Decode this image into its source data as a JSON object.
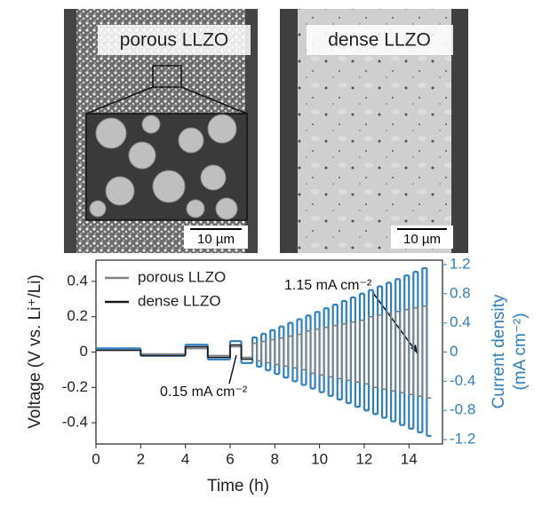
{
  "images": [
    {
      "label": "porous LLZO",
      "scale": "10 µm"
    },
    {
      "label": "dense LLZO",
      "scale": "10 µm"
    }
  ],
  "chart_data": {
    "type": "line",
    "xlabel": "Time (h)",
    "ylabel": "Voltage (V vs. Li⁺/Li)",
    "y2label": [
      "Current density",
      "(mA cm⁻²)"
    ],
    "annotations": [
      "1.15 mA cm⁻²",
      "0.15 mA cm⁻²"
    ],
    "xlim": [
      0,
      15.5
    ],
    "xticks": [
      0,
      2,
      4,
      6,
      8,
      10,
      12,
      14
    ],
    "ylim": [
      -0.52,
      0.52
    ],
    "yticks": [
      -0.4,
      -0.2,
      0,
      0.2,
      0.4
    ],
    "y2lim": [
      -1.26,
      1.26
    ],
    "y2ticks": [
      -1.2,
      -0.8,
      -0.4,
      0,
      0.4,
      0.8,
      1.2
    ],
    "x": [
      0,
      2,
      4,
      5,
      6,
      6.5,
      7,
      7.2,
      7.4,
      7.6,
      7.8,
      8,
      8.2,
      8.4,
      8.6,
      8.8,
      9,
      9.2,
      9.4,
      9.6,
      9.8,
      10,
      10.2,
      10.4,
      10.6,
      10.8,
      11,
      11.2,
      11.4,
      11.6,
      11.8,
      12,
      12.2,
      12.4,
      12.6,
      12.8,
      13,
      13.2,
      13.4,
      13.6,
      13.8,
      14,
      14.2,
      14.4,
      14.6,
      14.8,
      15
    ],
    "series": [
      {
        "color": "#2e7fc0",
        "axis": "y2",
        "values": [
          0.05,
          -0.05,
          0.1,
          -0.1,
          0.15,
          -0.15,
          0.2,
          -0.2,
          0.25,
          -0.25,
          0.3,
          -0.3,
          0.35,
          -0.35,
          0.4,
          -0.4,
          0.45,
          -0.45,
          0.5,
          -0.5,
          0.55,
          -0.55,
          0.6,
          -0.6,
          0.65,
          -0.65,
          0.7,
          -0.7,
          0.75,
          -0.75,
          0.8,
          -0.8,
          0.85,
          -0.85,
          0.9,
          -0.9,
          0.95,
          -0.95,
          1.0,
          -1.0,
          1.05,
          -1.05,
          1.1,
          -1.1,
          1.15,
          -1.15,
          null
        ]
      },
      {
        "name": "porous LLZO",
        "color": "#808080",
        "values": [
          0.01,
          -0.01,
          0.02,
          -0.02,
          0.03,
          -0.03,
          0.05,
          -0.05,
          0.06,
          -0.06,
          0.07,
          -0.07,
          0.08,
          -0.08,
          0.09,
          -0.09,
          0.1,
          -0.1,
          0.12,
          -0.12,
          0.13,
          -0.13,
          0.14,
          -0.14,
          0.15,
          -0.15,
          0.16,
          -0.16,
          0.17,
          -0.17,
          0.18,
          -0.18,
          0.2,
          -0.2,
          0.21,
          -0.21,
          0.22,
          -0.22,
          0.23,
          -0.23,
          0.24,
          -0.24,
          0.25,
          -0.25,
          0.26,
          -0.26,
          null
        ]
      },
      {
        "name": "dense LLZO",
        "color": "#1a1a1a",
        "values": [
          0.01,
          -0.02,
          0.03,
          -0.03,
          0.04,
          -0.04,
          null,
          null,
          null,
          null,
          null,
          null,
          null,
          null,
          null,
          null,
          null,
          null,
          null,
          null,
          null,
          null,
          null,
          null,
          null,
          null,
          null,
          null,
          null,
          null,
          null,
          null,
          null,
          null,
          null,
          null,
          null,
          null,
          null,
          null,
          null,
          null,
          null,
          null,
          null,
          null,
          null
        ]
      }
    ]
  }
}
